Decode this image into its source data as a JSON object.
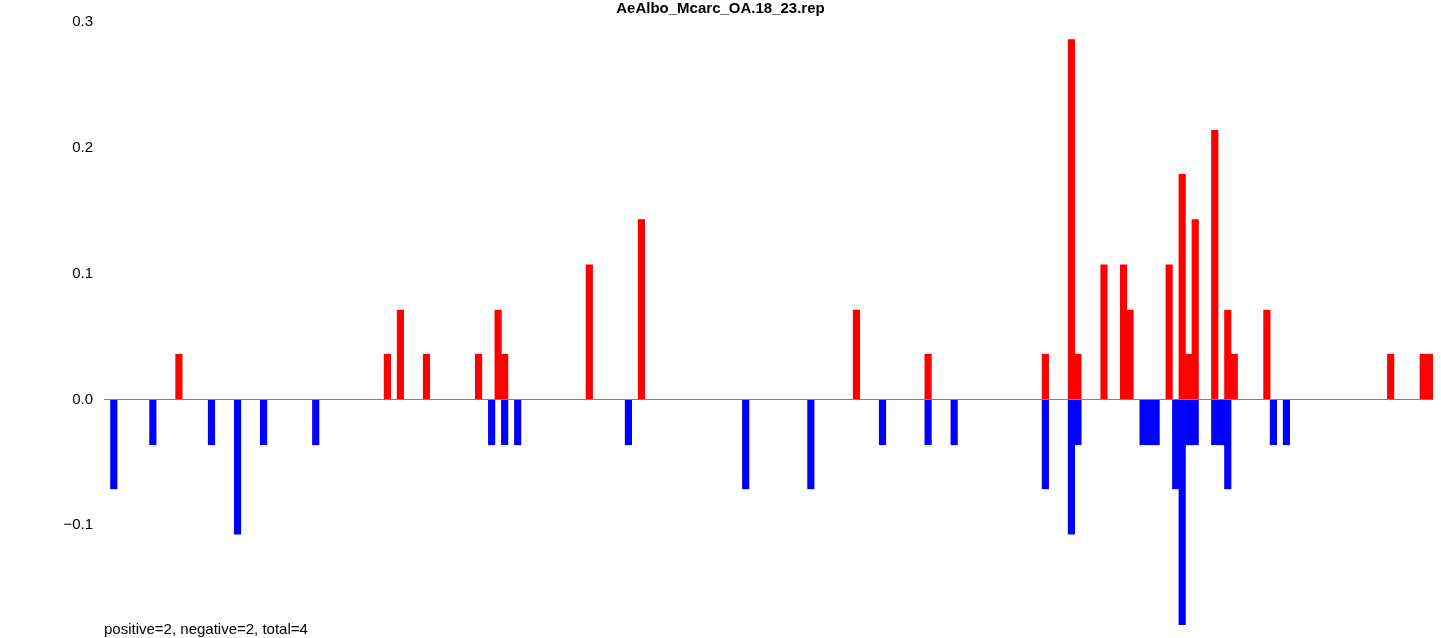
{
  "chart_data": {
    "type": "bar",
    "title": "AeAlbo_Mcarc_OA.18_23.rep",
    "categories": [
      null,
      null,
      null,
      null,
      null,
      null,
      null,
      null,
      null,
      null,
      null,
      null,
      null,
      null,
      null,
      null,
      null,
      null,
      null,
      null,
      null,
      null,
      null,
      null,
      null,
      null,
      null,
      null,
      null,
      null,
      null,
      null,
      null,
      null,
      null,
      null,
      null,
      null,
      null,
      null,
      null,
      null,
      null,
      null,
      null,
      null,
      null,
      null,
      null,
      null,
      null,
      null,
      null,
      null,
      null,
      null,
      null,
      null,
      null,
      null,
      null,
      null,
      null,
      null,
      null,
      null,
      null,
      null,
      null,
      null,
      null,
      null,
      null,
      null,
      null,
      null,
      null,
      null,
      null,
      null,
      null,
      null,
      null,
      null,
      null,
      null,
      null,
      null,
      null,
      null,
      null,
      null,
      null,
      null,
      null,
      null,
      null,
      null,
      null,
      null,
      null,
      null,
      null,
      null,
      null,
      null,
      null,
      null,
      null,
      null,
      null,
      null,
      null,
      null,
      null,
      null,
      null,
      null,
      null,
      null,
      null,
      null,
      null,
      null,
      null,
      null,
      null,
      null,
      null,
      null,
      null,
      null,
      null,
      null,
      null,
      null,
      null,
      null,
      null,
      null,
      null,
      null,
      null,
      null,
      null,
      null,
      null,
      null,
      null,
      null,
      null,
      null,
      null,
      null,
      null,
      null,
      null,
      null,
      null,
      null,
      null,
      null,
      null,
      null,
      null,
      null,
      null,
      null,
      null,
      null,
      null,
      null,
      null,
      null,
      null,
      null,
      null,
      null,
      null,
      null,
      null,
      null,
      null,
      null,
      null,
      null,
      null,
      null,
      null,
      null,
      null,
      null,
      null,
      null,
      null,
      null,
      null,
      null,
      null,
      null,
      null,
      null,
      null,
      null
    ],
    "series": [
      {
        "color": "#ff0000",
        "values": [
          null,
          null,
          null,
          null,
          null,
          null,
          null,
          null,
          null,
          null,
          null,
          0.036,
          null,
          null,
          null,
          null,
          null,
          null,
          null,
          null,
          null,
          null,
          null,
          null,
          null,
          null,
          null,
          null,
          null,
          null,
          null,
          null,
          null,
          null,
          null,
          null,
          null,
          null,
          null,
          null,
          null,
          null,
          null,
          0.036,
          null,
          0.071,
          null,
          null,
          null,
          0.036,
          null,
          null,
          null,
          null,
          null,
          null,
          null,
          0.036,
          null,
          null,
          0.071,
          0.036,
          null,
          null,
          null,
          null,
          null,
          null,
          null,
          null,
          null,
          null,
          null,
          null,
          0.107,
          null,
          null,
          null,
          null,
          null,
          null,
          null,
          0.143,
          null,
          null,
          null,
          null,
          null,
          null,
          null,
          null,
          null,
          null,
          null,
          null,
          null,
          null,
          null,
          null,
          null,
          null,
          null,
          null,
          null,
          null,
          null,
          null,
          null,
          null,
          null,
          null,
          null,
          null,
          null,
          null,
          0.071,
          null,
          null,
          null,
          null,
          null,
          null,
          null,
          null,
          null,
          null,
          0.036,
          null,
          null,
          null,
          null,
          null,
          null,
          null,
          null,
          null,
          null,
          null,
          null,
          null,
          null,
          null,
          null,
          null,
          0.036,
          null,
          null,
          null,
          0.286,
          0.036,
          null,
          null,
          null,
          0.107,
          null,
          null,
          0.107,
          0.071,
          null,
          null,
          null,
          null,
          null,
          0.107,
          null,
          0.179,
          0.036,
          0.143,
          null,
          null,
          0.214,
          null,
          0.071,
          0.036,
          null,
          null,
          null,
          null,
          0.071,
          null,
          null,
          null,
          null,
          null,
          null,
          null,
          null,
          null,
          null,
          null,
          null,
          null,
          null,
          null,
          null,
          null,
          null,
          0.036,
          null,
          null,
          null,
          null,
          0.036,
          0.036
        ]
      },
      {
        "color": "#0000ff",
        "values": [
          null,
          -0.071,
          null,
          null,
          null,
          null,
          null,
          -0.036,
          null,
          null,
          null,
          null,
          null,
          null,
          null,
          null,
          -0.036,
          null,
          null,
          null,
          -0.107,
          null,
          null,
          null,
          -0.036,
          null,
          null,
          null,
          null,
          null,
          null,
          null,
          -0.036,
          null,
          null,
          null,
          null,
          null,
          null,
          null,
          null,
          null,
          null,
          null,
          null,
          null,
          null,
          null,
          null,
          null,
          null,
          null,
          null,
          null,
          null,
          null,
          null,
          null,
          null,
          -0.036,
          null,
          -0.036,
          null,
          -0.036,
          null,
          null,
          null,
          null,
          null,
          null,
          null,
          null,
          null,
          null,
          null,
          null,
          null,
          null,
          null,
          null,
          -0.036,
          null,
          null,
          null,
          null,
          null,
          null,
          null,
          null,
          null,
          null,
          null,
          null,
          null,
          null,
          null,
          null,
          null,
          -0.071,
          null,
          null,
          null,
          null,
          null,
          null,
          null,
          null,
          null,
          -0.071,
          null,
          null,
          null,
          null,
          null,
          null,
          null,
          null,
          null,
          null,
          -0.036,
          null,
          null,
          null,
          null,
          null,
          null,
          -0.036,
          null,
          null,
          null,
          -0.036,
          null,
          null,
          null,
          null,
          null,
          null,
          null,
          null,
          null,
          null,
          null,
          null,
          null,
          -0.071,
          null,
          null,
          null,
          -0.107,
          -0.036,
          null,
          null,
          null,
          null,
          null,
          null,
          null,
          null,
          null,
          -0.036,
          -0.036,
          -0.036,
          null,
          null,
          -0.071,
          -0.179,
          -0.036,
          -0.036,
          null,
          null,
          -0.036,
          -0.036,
          -0.071,
          null,
          null,
          null,
          null,
          null,
          null,
          -0.036,
          null,
          -0.036,
          null,
          null,
          null,
          null,
          null,
          null,
          null,
          null,
          null,
          null,
          null,
          null,
          null,
          null,
          null,
          null,
          null,
          null,
          null,
          null,
          null,
          null
        ]
      }
    ],
    "ylim": [
      -0.18,
      0.3
    ],
    "yticks": [
      {
        "value": -0.1,
        "label": "−0.1"
      },
      {
        "value": 0,
        "label": "0.0"
      },
      {
        "value": 0.1,
        "label": "0.1"
      },
      {
        "value": 0.2,
        "label": "0.2"
      },
      {
        "value": 0.3,
        "label": "0.3"
      }
    ],
    "ref_lines": [
      {
        "axis": "y",
        "value": 0,
        "color": "#808080"
      }
    ],
    "annotations": [
      "positive=2, negative=2, total=4"
    ]
  }
}
